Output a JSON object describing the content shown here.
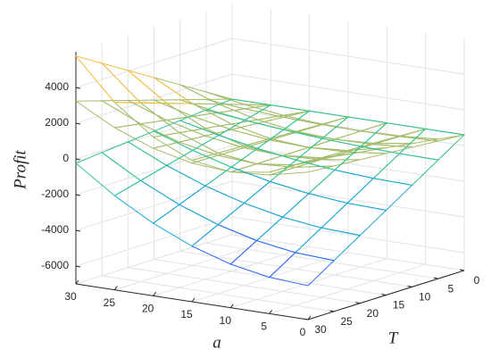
{
  "chart_data": {
    "type": "surface3d",
    "xlabel": "a",
    "ylabel": "T",
    "zlabel": "Profit",
    "x": [
      0,
      5,
      10,
      15,
      20,
      25,
      30
    ],
    "y": [
      0,
      5,
      10,
      15,
      20,
      25,
      30
    ],
    "xlim": [
      0,
      30
    ],
    "ylim": [
      0,
      30
    ],
    "zlim": [
      -7000,
      6000
    ],
    "xticks": [
      0,
      5,
      10,
      15,
      20,
      25,
      30
    ],
    "yticks": [
      0,
      5,
      10,
      15,
      20,
      25,
      30
    ],
    "zticks": [
      -6000,
      -4000,
      -2000,
      0,
      2000,
      4000
    ],
    "grid": true,
    "colormap": [
      "#3e26a8",
      "#2f67f5",
      "#18a5d7",
      "#30c294",
      "#a3bd6a",
      "#f5ba3e",
      "#f9fb15"
    ],
    "surfaces": [
      {
        "z": [
          [
            600,
            600,
            600,
            600,
            600,
            600,
            600
          ],
          [
            815,
            654,
            600,
            654,
            815,
            1084,
            1460
          ],
          [
            1030,
            708,
            600,
            708,
            1030,
            1568,
            2320
          ],
          [
            1245,
            761,
            600,
            761,
            1245,
            2051,
            3180
          ],
          [
            1460,
            815,
            600,
            815,
            1460,
            2535,
            4040
          ],
          [
            1675,
            869,
            600,
            869,
            1675,
            3019,
            4900
          ],
          [
            1890,
            923,
            600,
            923,
            1890,
            3503,
            5760
          ]
        ]
      },
      {
        "z": [
          [
            600,
            600,
            600,
            600,
            600,
            600,
            600
          ],
          [
            710,
            628,
            600,
            628,
            710,
            848,
            1040
          ],
          [
            820,
            655,
            600,
            655,
            820,
            1095,
            1480
          ],
          [
            930,
            683,
            600,
            683,
            930,
            1343,
            1920
          ],
          [
            1040,
            710,
            600,
            710,
            1040,
            1590,
            2360
          ],
          [
            1150,
            738,
            600,
            738,
            1150,
            1838,
            2800
          ],
          [
            1260,
            765,
            600,
            765,
            1260,
            2085,
            3240
          ]
        ]
      },
      {
        "z": [
          [
            600,
            600,
            600,
            600,
            600,
            600,
            600
          ],
          [
            -350,
            -328,
            -260,
            -148,
            10,
            213,
            460
          ],
          [
            -1300,
            -1255,
            -1120,
            -895,
            -580,
            -175,
            320
          ],
          [
            -2250,
            -2183,
            -1980,
            -1643,
            -1170,
            -563,
            180
          ],
          [
            -3200,
            -3110,
            -2840,
            -2390,
            -1760,
            -950,
            40
          ],
          [
            -4150,
            -4038,
            -3700,
            -3138,
            -2350,
            -1338,
            -100
          ],
          [
            -5100,
            -4965,
            -4560,
            -3885,
            -2940,
            -1725,
            -240
          ]
        ]
      }
    ]
  }
}
